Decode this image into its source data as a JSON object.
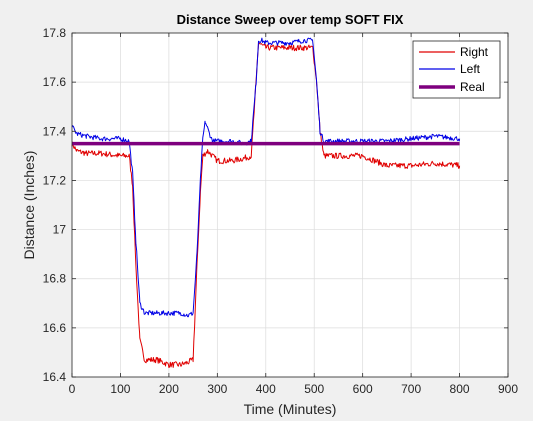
{
  "chart_data": {
    "type": "line",
    "title": "Distance Sweep over temp SOFT FIX",
    "xlabel": "Time (Minutes)",
    "ylabel": "Distance (Inches)",
    "xlim": [
      0,
      900
    ],
    "ylim": [
      16.4,
      17.8
    ],
    "xticks": [
      0,
      100,
      200,
      300,
      400,
      500,
      600,
      700,
      800,
      900
    ],
    "yticks": [
      16.4,
      16.6,
      16.8,
      17,
      17.2,
      17.4,
      17.6,
      17.8
    ],
    "grid": true,
    "legend_position": "top-right",
    "series": [
      {
        "name": "Right",
        "color": "#e00000",
        "x": [
          0,
          10,
          30,
          60,
          100,
          118,
          125,
          132,
          140,
          150,
          175,
          200,
          225,
          240,
          250,
          258,
          265,
          270,
          280,
          300,
          330,
          355,
          370,
          380,
          385,
          392,
          400,
          450,
          480,
          497,
          505,
          512,
          520,
          560,
          600,
          650,
          700,
          750,
          800
        ],
        "y": [
          17.35,
          17.32,
          17.31,
          17.31,
          17.3,
          17.3,
          17.18,
          16.85,
          16.55,
          16.47,
          16.47,
          16.45,
          16.45,
          16.46,
          16.47,
          16.85,
          17.15,
          17.3,
          17.32,
          17.28,
          17.28,
          17.29,
          17.3,
          17.6,
          17.76,
          17.75,
          17.74,
          17.74,
          17.74,
          17.74,
          17.6,
          17.4,
          17.3,
          17.3,
          17.3,
          17.26,
          17.26,
          17.27,
          17.26
        ],
        "noise": 0.012
      },
      {
        "name": "Left",
        "color": "#0000e6",
        "x": [
          0,
          10,
          30,
          60,
          100,
          118,
          125,
          132,
          140,
          150,
          175,
          200,
          225,
          240,
          250,
          258,
          265,
          270,
          275,
          282,
          290,
          300,
          330,
          355,
          370,
          380,
          385,
          392,
          400,
          450,
          480,
          497,
          505,
          512,
          520,
          560,
          600,
          650,
          700,
          750,
          800
        ],
        "y": [
          17.42,
          17.39,
          17.38,
          17.37,
          17.37,
          17.36,
          17.23,
          16.95,
          16.7,
          16.66,
          16.66,
          16.66,
          16.66,
          16.65,
          16.66,
          16.9,
          17.2,
          17.37,
          17.44,
          17.4,
          17.36,
          17.36,
          17.36,
          17.35,
          17.36,
          17.6,
          17.77,
          17.77,
          17.76,
          17.76,
          17.77,
          17.77,
          17.6,
          17.4,
          17.36,
          17.36,
          17.36,
          17.36,
          17.37,
          17.38,
          17.37
        ],
        "noise": 0.01
      },
      {
        "name": "Real",
        "color": "#7e007e",
        "x": [
          0,
          800
        ],
        "y": [
          17.35,
          17.35
        ],
        "noise": 0
      }
    ]
  }
}
